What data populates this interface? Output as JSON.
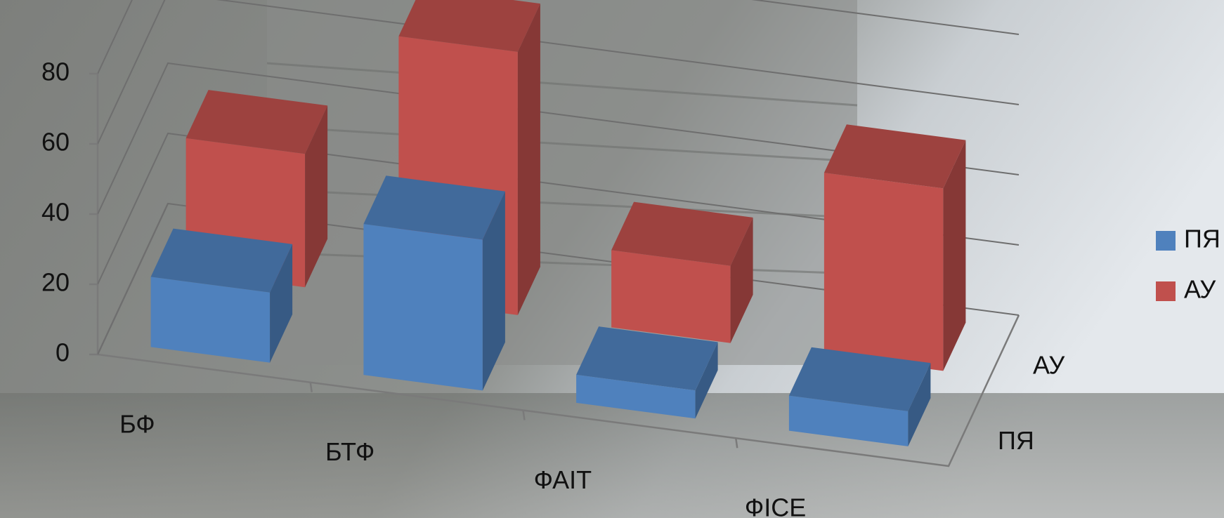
{
  "chart_data": {
    "type": "bar3d",
    "categories": [
      "БФ",
      "БТФ",
      "ФАІТ",
      "ФІСЕ"
    ],
    "series": [
      {
        "name": "ПЯ",
        "color": "#4f81bd",
        "values": [
          20,
          43,
          8,
          10
        ]
      },
      {
        "name": "АУ",
        "color": "#c0504d",
        "values": [
          38,
          75,
          22,
          52
        ]
      }
    ],
    "ylim": [
      0,
      80
    ],
    "yticks": [
      0,
      20,
      40,
      60,
      80
    ],
    "grid": true,
    "legend": "right"
  }
}
